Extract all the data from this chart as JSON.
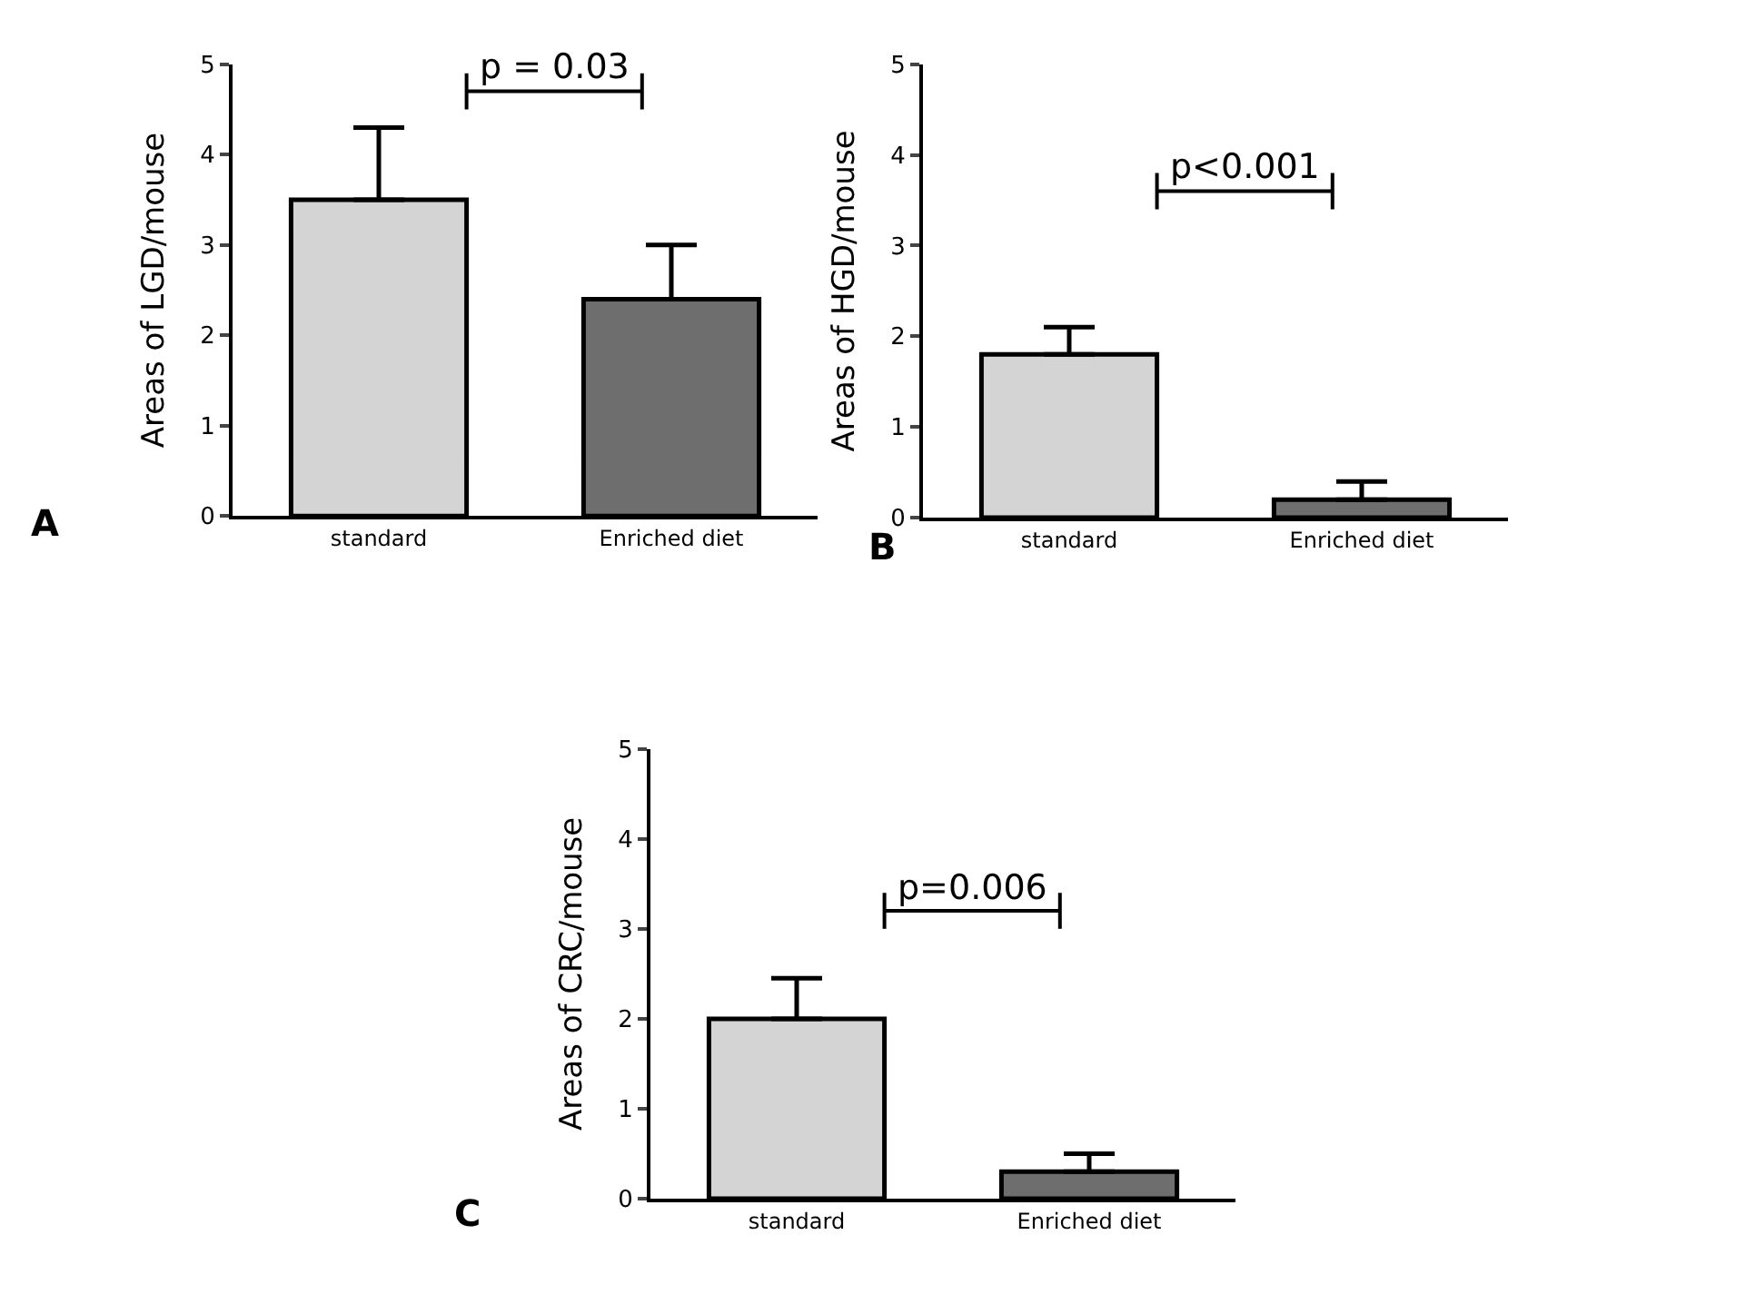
{
  "chart_data": [
    {
      "type": "bar",
      "ylabel": "Areas of LGD/mouse",
      "categories": [
        "standard",
        "Enriched diet"
      ],
      "values": [
        3.5,
        2.4
      ],
      "colors": [
        "#d4d4d4",
        "#6e6e6e"
      ],
      "errors": [
        [
          3.5,
          4.3
        ],
        [
          2.4,
          3.0
        ]
      ],
      "ylim": [
        0,
        5
      ],
      "yticks": [
        0,
        1,
        2,
        3,
        4,
        5
      ],
      "annotations": [
        "p = 0.03",
        "A"
      ]
    },
    {
      "type": "bar",
      "ylabel": "Areas of HGD/mouse",
      "categories": [
        "standard",
        "Enriched diet"
      ],
      "values": [
        1.8,
        0.2
      ],
      "colors": [
        "#d4d4d4",
        "#6e6e6e"
      ],
      "errors": [
        [
          1.8,
          2.1
        ],
        [
          0.2,
          0.4
        ]
      ],
      "ylim": [
        0,
        5
      ],
      "yticks": [
        0,
        1,
        2,
        3,
        4,
        5
      ],
      "annotations": [
        "p<0.001",
        "B"
      ]
    },
    {
      "type": "bar",
      "ylabel": "Areas of CRC/mouse",
      "categories": [
        "standard",
        "Enriched diet"
      ],
      "values": [
        2.0,
        0.3
      ],
      "colors": [
        "#d4d4d4",
        "#6e6e6e"
      ],
      "errors": [
        [
          2.0,
          2.45
        ],
        [
          0.3,
          0.5
        ]
      ],
      "ylim": [
        0,
        5
      ],
      "yticks": [
        0,
        1,
        2,
        3,
        4,
        5
      ],
      "annotations": [
        "p=0.006",
        "C"
      ]
    }
  ]
}
